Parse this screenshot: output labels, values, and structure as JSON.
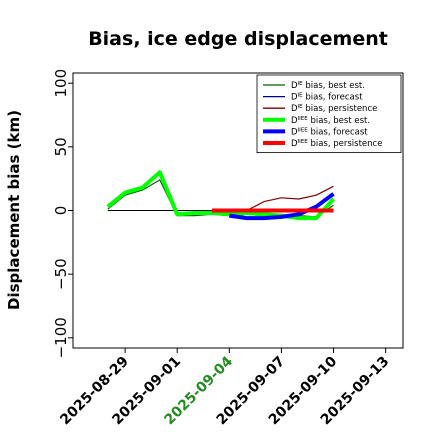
{
  "chart_data": {
    "type": "line",
    "title": "Bias, ice edge displacement",
    "xlabel": "",
    "ylabel": "Displacement bias (km)",
    "x_range": [
      "2025-08-26",
      "2025-09-14"
    ],
    "ylim": [
      -108,
      108
    ],
    "y_ticks": [
      -100,
      -50,
      0,
      50,
      100
    ],
    "y_tick_labels": [
      "−100",
      "−50",
      "0",
      "50",
      "100"
    ],
    "x_ticks": [
      "2025-08-29",
      "2025-09-01",
      "2025-09-04",
      "2025-09-07",
      "2025-09-10",
      "2025-09-13"
    ],
    "x_tick_colors": [
      "#000000",
      "#000000",
      "#228b22",
      "#000000",
      "#000000",
      "#000000"
    ],
    "grid": false,
    "legend_position": "top-right",
    "series": [
      {
        "name": "D bias, best est.",
        "sup": "IE",
        "color": "#006400",
        "width": 1.2,
        "x": [
          "2025-08-28",
          "2025-08-29",
          "2025-08-30",
          "2025-08-31",
          "2025-09-01",
          "2025-09-02",
          "2025-09-03",
          "2025-09-04",
          "2025-09-05",
          "2025-09-06",
          "2025-09-07",
          "2025-09-08",
          "2025-09-09",
          "2025-09-10"
        ],
        "y": [
          1,
          12,
          16,
          24,
          -4,
          -4,
          -3,
          -4,
          -3,
          -4,
          -4,
          -4,
          -5,
          4
        ]
      },
      {
        "name": "D bias, forecast",
        "sup": "IE",
        "color": "#00008b",
        "width": 1.2,
        "x": [
          "2025-09-04",
          "2025-09-05",
          "2025-09-06",
          "2025-09-07",
          "2025-09-08",
          "2025-09-09",
          "2025-09-10"
        ],
        "y": [
          -4,
          -6,
          -6,
          -6,
          -4,
          2,
          12
        ]
      },
      {
        "name": "D bias, persistence",
        "sup": "IE",
        "color": "#800000",
        "width": 1.2,
        "x": [
          "2025-09-04",
          "2025-09-05",
          "2025-09-06",
          "2025-09-07",
          "2025-09-08",
          "2025-09-09",
          "2025-09-10"
        ],
        "y": [
          -1,
          0,
          7,
          10,
          9,
          12,
          19
        ]
      },
      {
        "name": "D bias, best est.",
        "sup": "IIEE",
        "color": "#00ff00",
        "width": 4,
        "x": [
          "2025-08-28",
          "2025-08-29",
          "2025-08-30",
          "2025-08-31",
          "2025-09-01",
          "2025-09-02",
          "2025-09-03",
          "2025-09-04",
          "2025-09-05",
          "2025-09-06",
          "2025-09-07",
          "2025-09-08",
          "2025-09-09",
          "2025-09-10"
        ],
        "y": [
          3,
          14,
          18,
          30,
          -3,
          -2,
          -2,
          -3,
          -2,
          -3,
          -4,
          -6,
          -6,
          9
        ]
      },
      {
        "name": "D bias, forecast",
        "sup": "IIEE",
        "color": "#0000ff",
        "width": 4,
        "x": [
          "2025-09-04",
          "2025-09-05",
          "2025-09-06",
          "2025-09-07",
          "2025-09-08",
          "2025-09-09",
          "2025-09-10"
        ],
        "y": [
          -4,
          -6,
          -6,
          -5,
          -3,
          3,
          13
        ]
      },
      {
        "name": "D bias, persistence",
        "sup": "IIEE",
        "color": "#ff0000",
        "width": 4,
        "x": [
          "2025-09-03",
          "2025-09-04",
          "2025-09-05",
          "2025-09-06",
          "2025-09-07",
          "2025-09-08",
          "2025-09-09",
          "2025-09-10"
        ],
        "y": [
          0,
          0,
          0,
          0,
          0,
          0,
          0,
          0
        ]
      }
    ],
    "reference_line": {
      "y": 0,
      "x": [
        "2025-08-28",
        "2025-09-10"
      ],
      "color": "#000000"
    }
  }
}
